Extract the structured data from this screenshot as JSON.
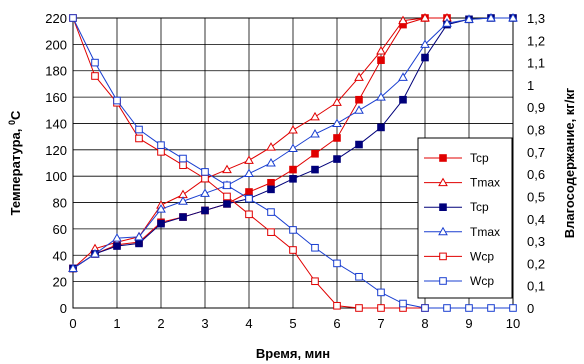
{
  "chart_data": {
    "type": "line",
    "xlabel": "Время, мин",
    "ylabel_left": "Температура,",
    "ylabel_left_unit": "С",
    "ylabel_left_unit_superscript": "0",
    "ylabel_right": "Влагосодержание, кг/кг",
    "xlim": [
      0,
      10
    ],
    "ylim_left": [
      0,
      220
    ],
    "ylim_right": [
      0,
      1.3
    ],
    "xticks": [
      "0",
      "1",
      "2",
      "3",
      "4",
      "5",
      "6",
      "7",
      "8",
      "9",
      "10"
    ],
    "yticks_left": [
      "0",
      "20",
      "40",
      "60",
      "80",
      "100",
      "120",
      "140",
      "160",
      "180",
      "200",
      "220"
    ],
    "yticks_right": [
      "0",
      "0,1",
      "0,2",
      "0,3",
      "0,4",
      "0,5",
      "0,6",
      "0,7",
      "0,8",
      "0,9",
      "1",
      "1,1",
      "1,2",
      "1,3"
    ],
    "grid": true,
    "legend_position": "right",
    "series": [
      {
        "name": "Tcp",
        "axis": "left",
        "color": "#e00000",
        "marker": "square-filled",
        "x": [
          0,
          0.5,
          1,
          1.5,
          2,
          2.5,
          3,
          3.5,
          4,
          4.5,
          5,
          5.5,
          6,
          6.5,
          7,
          7.5,
          8,
          8.5
        ],
        "y": [
          30,
          41,
          48,
          50,
          65,
          69,
          74,
          79,
          88,
          95,
          105,
          117,
          129,
          158,
          188,
          215,
          220,
          220
        ]
      },
      {
        "name": "Tmax",
        "axis": "left",
        "color": "#e00000",
        "marker": "triangle-open",
        "x": [
          0,
          0.5,
          1,
          1.5,
          2,
          2.5,
          3,
          3.5,
          4,
          4.5,
          5,
          5.5,
          6,
          6.5,
          7,
          7.5,
          8,
          8.5
        ],
        "y": [
          30,
          45,
          50,
          54,
          78,
          86,
          98,
          105,
          112,
          122,
          135,
          145,
          156,
          175,
          195,
          218,
          220,
          220
        ]
      },
      {
        "name": "Tcp",
        "axis": "left",
        "color": "#00007a",
        "marker": "square-filled",
        "x": [
          0,
          0.5,
          1,
          1.5,
          2,
          2.5,
          3,
          3.5,
          4,
          4.5,
          5,
          5.5,
          6,
          6.5,
          7,
          7.5,
          8,
          8.5,
          9,
          9.5,
          10
        ],
        "y": [
          30,
          41,
          47,
          49,
          64,
          69,
          74,
          79,
          83,
          90,
          98,
          105,
          113,
          124,
          137,
          158,
          190,
          215,
          219,
          220,
          220
        ]
      },
      {
        "name": "Tmax",
        "axis": "left",
        "color": "#1a3fd0",
        "marker": "triangle-open",
        "x": [
          0,
          0.5,
          1,
          1.5,
          2,
          2.5,
          3,
          3.5,
          4,
          4.5,
          5,
          5.5,
          6,
          6.5,
          7,
          7.5,
          8,
          8.5,
          9,
          9.5,
          10
        ],
        "y": [
          30,
          41,
          53,
          54,
          75,
          81,
          87,
          93,
          102,
          110,
          121,
          132,
          140,
          150,
          160,
          175,
          200,
          216,
          219,
          220,
          220
        ]
      },
      {
        "name": "Wcp",
        "axis": "right",
        "color": "#e00000",
        "marker": "square-open",
        "x": [
          0,
          0.5,
          1,
          1.5,
          2,
          2.5,
          3,
          3.5,
          4,
          4.5,
          5,
          5.5,
          6,
          6.5,
          7,
          7.5,
          8
        ],
        "y": [
          1.3,
          1.04,
          0.92,
          0.76,
          0.7,
          0.64,
          0.58,
          0.5,
          0.42,
          0.34,
          0.26,
          0.12,
          0.01,
          0,
          0,
          0,
          0
        ]
      },
      {
        "name": "Wcp",
        "axis": "right",
        "color": "#1a3fd0",
        "marker": "square-open",
        "x": [
          0,
          0.5,
          1,
          1.5,
          2,
          2.5,
          3,
          3.5,
          4,
          4.5,
          5,
          5.5,
          6,
          6.5,
          7,
          7.5,
          8,
          8.5,
          9,
          9.5,
          10
        ],
        "y": [
          1.3,
          1.1,
          0.93,
          0.8,
          0.73,
          0.67,
          0.61,
          0.55,
          0.49,
          0.43,
          0.35,
          0.27,
          0.2,
          0.14,
          0.07,
          0.02,
          0,
          0,
          0,
          0,
          0
        ]
      }
    ]
  }
}
